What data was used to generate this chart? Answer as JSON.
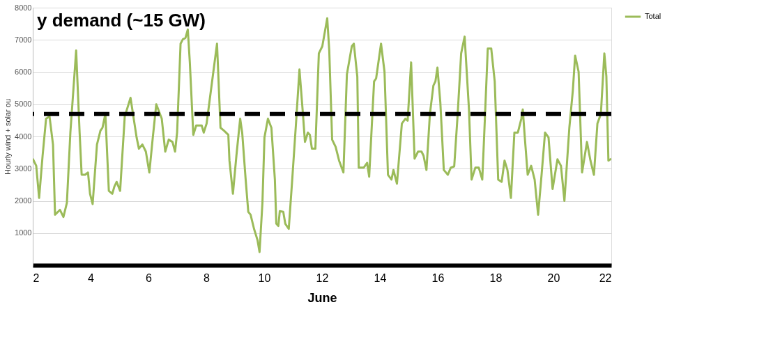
{
  "chart_data": {
    "type": "line",
    "xlabel": "June",
    "ylabel": "Hourly wind + solar ou",
    "xlim": [
      2,
      22
    ],
    "xticks": [
      2,
      4,
      6,
      8,
      10,
      12,
      14,
      16,
      18,
      20,
      22
    ],
    "ylim": [
      0,
      8000
    ],
    "yticks": [
      1000,
      2000,
      3000,
      4000,
      5000,
      6000,
      7000,
      8000
    ],
    "grid": "y",
    "legend": "right",
    "line_style": "solid",
    "ref_lines": [
      {
        "axis": "y",
        "value": 4700,
        "label": "y demand (~15 GW)",
        "color": "#000000",
        "line_style": "dashed"
      }
    ],
    "series": [
      {
        "name": "Total",
        "color": "#9bbb59",
        "x": [
          2.0,
          2.12,
          2.22,
          2.34,
          2.46,
          2.58,
          2.7,
          2.77,
          2.94,
          3.06,
          3.18,
          3.3,
          3.5,
          3.62,
          3.69,
          3.81,
          3.91,
          3.98,
          4.07,
          4.22,
          4.34,
          4.41,
          4.51,
          4.63,
          4.75,
          4.82,
          4.9,
          5.02,
          5.18,
          5.38,
          5.59,
          5.67,
          5.79,
          5.91,
          6.03,
          6.15,
          6.27,
          6.46,
          6.58,
          6.7,
          6.83,
          6.92,
          6.99,
          7.11,
          7.19,
          7.28,
          7.36,
          7.43,
          7.55,
          7.65,
          7.84,
          7.91,
          8.01,
          8.37,
          8.49,
          8.61,
          8.76,
          8.8,
          8.92,
          9.04,
          9.17,
          9.24,
          9.36,
          9.45,
          9.53,
          9.65,
          9.77,
          9.84,
          9.94,
          10.01,
          10.13,
          10.25,
          10.37,
          10.42,
          10.49,
          10.54,
          10.66,
          10.73,
          10.85,
          10.97,
          11.1,
          11.22,
          11.34,
          11.41,
          11.51,
          11.58,
          11.65,
          11.77,
          11.89,
          12.01,
          12.18,
          12.25,
          12.35,
          12.47,
          12.59,
          12.74,
          12.86,
          13.03,
          13.1,
          13.22,
          13.27,
          13.44,
          13.56,
          13.63,
          13.8,
          13.87,
          14.04,
          14.16,
          14.28,
          14.4,
          14.47,
          14.59,
          14.76,
          14.88,
          14.96,
          15.08,
          15.2,
          15.32,
          15.44,
          15.51,
          15.61,
          15.73,
          15.85,
          15.92,
          15.99,
          16.09,
          16.21,
          16.35,
          16.45,
          16.57,
          16.69,
          16.81,
          16.93,
          17.08,
          17.17,
          17.3,
          17.42,
          17.54,
          17.61,
          17.73,
          17.85,
          17.97,
          18.09,
          18.21,
          18.31,
          18.41,
          18.53,
          18.65,
          18.77,
          18.89,
          18.94,
          19.01,
          19.11,
          19.23,
          19.35,
          19.47,
          19.59,
          19.71,
          19.83,
          19.97,
          20.14,
          20.26,
          20.38,
          20.55,
          20.67,
          20.75,
          20.87,
          20.99,
          21.16,
          21.28,
          21.4,
          21.52,
          21.64,
          21.76,
          21.83,
          21.9,
          22.0
        ],
        "values": [
          3310,
          3090,
          2090,
          3400,
          4550,
          4620,
          3750,
          1570,
          1720,
          1500,
          1940,
          4120,
          6670,
          4120,
          2810,
          2810,
          2880,
          2220,
          1900,
          3750,
          4180,
          4270,
          4700,
          2310,
          2220,
          2440,
          2590,
          2310,
          4620,
          5200,
          3970,
          3620,
          3750,
          3530,
          2880,
          3970,
          5000,
          4550,
          3530,
          3900,
          3830,
          3530,
          4120,
          6880,
          7020,
          7060,
          7320,
          6300,
          4050,
          4340,
          4340,
          4120,
          4400,
          6880,
          4270,
          4180,
          4050,
          3250,
          2220,
          3400,
          4550,
          4120,
          2660,
          1660,
          1570,
          1130,
          780,
          410,
          1940,
          3970,
          4550,
          4270,
          2660,
          1290,
          1220,
          1680,
          1660,
          1290,
          1130,
          2660,
          4400,
          6080,
          4700,
          3830,
          4120,
          4050,
          3620,
          3620,
          6580,
          6800,
          7670,
          6670,
          3900,
          3680,
          3250,
          2880,
          5930,
          6800,
          6880,
          5860,
          3030,
          3030,
          3180,
          2750,
          5710,
          5800,
          6880,
          6010,
          2810,
          2660,
          2960,
          2530,
          4400,
          4550,
          4490,
          6300,
          3310,
          3530,
          3530,
          3400,
          2960,
          4700,
          5580,
          5710,
          6140,
          5050,
          2960,
          2810,
          3030,
          3070,
          4700,
          6580,
          7100,
          4840,
          2660,
          3030,
          3030,
          2660,
          4120,
          6730,
          6730,
          5710,
          2660,
          2590,
          3250,
          2960,
          2090,
          4120,
          4120,
          4550,
          4840,
          3970,
          2810,
          3090,
          2660,
          1570,
          2810,
          4120,
          3970,
          2370,
          3290,
          3090,
          2000,
          4270,
          5420,
          6510,
          6010,
          2880,
          3830,
          3250,
          2810,
          4400,
          4700,
          6580,
          5860,
          3250,
          3310
        ]
      }
    ]
  }
}
